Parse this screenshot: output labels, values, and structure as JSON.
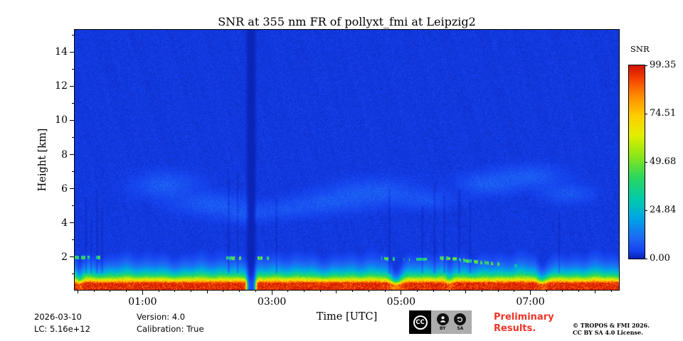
{
  "chart_data": {
    "type": "heatmap",
    "title": "SNR at 355 nm FR of pollyxt_fmi at Leipzig2",
    "xlabel": "Time [UTC]",
    "ylabel": "Height [km]",
    "colorbar_label": "SNR",
    "x_ticks": [
      {
        "t": 1,
        "label": "01:00"
      },
      {
        "t": 3,
        "label": "03:00"
      },
      {
        "t": 5,
        "label": "05:00"
      },
      {
        "t": 7,
        "label": "07:00"
      }
    ],
    "x_range_hours": [
      -0.05,
      8.37
    ],
    "y_ticks_km": [
      2,
      4,
      6,
      8,
      10,
      12,
      14
    ],
    "y_range_km": [
      0.08,
      15.3
    ],
    "snr_min": 0.0,
    "snr_max": 99.35,
    "colorbar_ticks": [
      "99.35",
      "74.51",
      "49.68",
      "24.84",
      "0.00"
    ],
    "colormap_stops": [
      {
        "t": 0.0,
        "color": "#0a23b4"
      },
      {
        "t": 0.035,
        "color": "#1541ee"
      },
      {
        "t": 0.1,
        "color": "#1e66f5"
      },
      {
        "t": 0.2,
        "color": "#00a2e8"
      },
      {
        "t": 0.3,
        "color": "#00c9b0"
      },
      {
        "t": 0.42,
        "color": "#2ad75f"
      },
      {
        "t": 0.53,
        "color": "#8ce619"
      },
      {
        "t": 0.64,
        "color": "#e3ef00"
      },
      {
        "t": 0.74,
        "color": "#ffce00"
      },
      {
        "t": 0.84,
        "color": "#ff8d00"
      },
      {
        "t": 0.93,
        "color": "#f64300"
      },
      {
        "t": 1.0,
        "color": "#d01300"
      }
    ],
    "background_snr": 2.6,
    "surface_layer": {
      "base_km": 0.08,
      "core_km": 0.45,
      "decay_km": 0.5,
      "peak_snr": 97
    },
    "band_dips": [
      {
        "t": 0.02,
        "w": 0.05,
        "depth": 0.3
      },
      {
        "t": 4.92,
        "w": 0.1,
        "depth": 0.5
      },
      {
        "t": 5.75,
        "w": 0.06,
        "depth": 0.3
      },
      {
        "t": 7.18,
        "w": 0.08,
        "depth": 0.35
      }
    ],
    "cloud_segments": [
      {
        "t0": -0.05,
        "t1": 0.35,
        "h0": 1.95,
        "h1": 1.95,
        "snr": 40
      },
      {
        "t0": 2.2,
        "t1": 2.56,
        "h0": 1.95,
        "h1": 1.9,
        "snr": 46
      },
      {
        "t0": 2.78,
        "t1": 3.0,
        "h0": 1.9,
        "h1": 1.9,
        "snr": 42
      },
      {
        "t0": 4.7,
        "t1": 5.05,
        "h0": 1.9,
        "h1": 1.85,
        "snr": 40
      },
      {
        "t0": 5.12,
        "t1": 5.4,
        "h0": 1.85,
        "h1": 1.85,
        "snr": 38
      },
      {
        "t0": 5.55,
        "t1": 5.92,
        "h0": 1.95,
        "h1": 1.85,
        "snr": 46
      },
      {
        "t0": 5.92,
        "t1": 6.55,
        "h0": 1.8,
        "h1": 1.55,
        "snr": 42
      },
      {
        "t0": 6.55,
        "t1": 6.8,
        "h0": 1.52,
        "h1": 1.45,
        "snr": 30
      }
    ],
    "aerosol_wisps": [
      {
        "t": 1.35,
        "tw": 0.45,
        "h": 6.2,
        "hw": 0.7,
        "amp": 6
      },
      {
        "t": 2.05,
        "tw": 0.5,
        "h": 5.1,
        "hw": 0.6,
        "amp": 6
      },
      {
        "t": 2.6,
        "tw": 0.35,
        "h": 4.5,
        "hw": 0.5,
        "amp": 5
      },
      {
        "t": 3.25,
        "tw": 0.4,
        "h": 4.8,
        "hw": 0.5,
        "amp": 4
      },
      {
        "t": 3.9,
        "tw": 0.5,
        "h": 5.2,
        "hw": 0.6,
        "amp": 5
      },
      {
        "t": 4.6,
        "tw": 0.6,
        "h": 5.8,
        "hw": 0.7,
        "amp": 6
      },
      {
        "t": 5.4,
        "tw": 0.4,
        "h": 5.3,
        "hw": 0.5,
        "amp": 4
      },
      {
        "t": 6.35,
        "tw": 0.4,
        "h": 6.3,
        "hw": 0.6,
        "amp": 6
      },
      {
        "t": 7.0,
        "tw": 0.45,
        "h": 6.7,
        "hw": 0.6,
        "amp": 6
      },
      {
        "t": 7.6,
        "tw": 0.35,
        "h": 5.7,
        "hw": 0.5,
        "amp": 5
      }
    ],
    "data_gap": {
      "t": 2.68,
      "w": 0.075
    },
    "dark_stripes": [
      {
        "t": 0.12,
        "w": 0.022,
        "hmax": 5.5
      },
      {
        "t": 0.2,
        "w": 0.02,
        "hmax": 4.2
      },
      {
        "t": 0.29,
        "w": 0.022,
        "hmax": 6.0
      },
      {
        "t": 0.37,
        "w": 0.02,
        "hmax": 5.0
      },
      {
        "t": 2.33,
        "w": 0.025,
        "hmax": 6.5
      },
      {
        "t": 2.47,
        "w": 0.022,
        "hmax": 7.0
      },
      {
        "t": 3.07,
        "w": 0.022,
        "hmax": 5.5
      },
      {
        "t": 4.82,
        "w": 0.025,
        "hmax": 6.0
      },
      {
        "t": 5.33,
        "w": 0.022,
        "hmax": 5.0
      },
      {
        "t": 5.52,
        "w": 0.025,
        "hmax": 6.3
      },
      {
        "t": 5.67,
        "w": 0.022,
        "hmax": 5.6
      },
      {
        "t": 5.9,
        "w": 0.028,
        "hmax": 6.0
      },
      {
        "t": 6.07,
        "w": 0.022,
        "hmax": 5.2
      },
      {
        "t": 7.45,
        "w": 0.022,
        "hmax": 4.6
      }
    ]
  },
  "footer": {
    "date": "2026-03-10",
    "lc": "LC: 5.16e+12",
    "version": "Version: 4.0",
    "calibration": "Calibration: True",
    "preliminary": "Preliminary\nResults.",
    "copyright": "© TROPOS & FMI 2026.\nCC BY SA 4.0 License.",
    "cc_badge": {
      "cc": "CC",
      "by": "BY",
      "sa": "SA"
    }
  },
  "colors": {
    "preliminary_red": "#ee3527"
  }
}
